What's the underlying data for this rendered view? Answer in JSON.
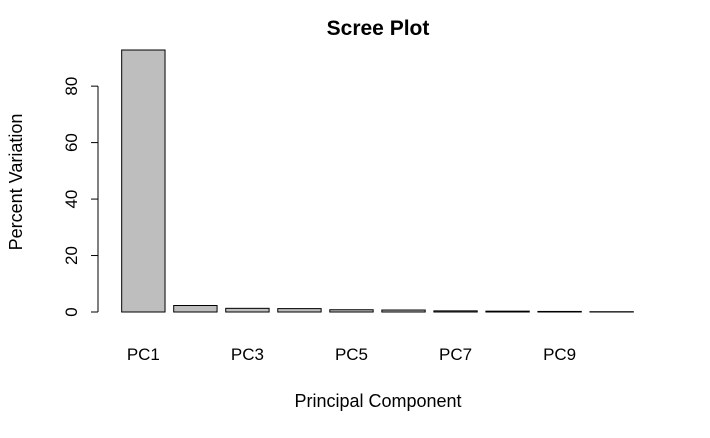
{
  "chart_data": {
    "type": "bar",
    "title": "Scree Plot",
    "xlabel": "Principal Component",
    "ylabel": "Percent Variation",
    "categories": [
      "PC1",
      "PC2",
      "PC3",
      "PC4",
      "PC5",
      "PC6",
      "PC7",
      "PC8",
      "PC9",
      "PC10"
    ],
    "x_tick_labels_shown": [
      "PC1",
      "PC3",
      "PC5",
      "PC7",
      "PC9"
    ],
    "values": [
      92.8,
      2.3,
      1.3,
      1.2,
      0.8,
      0.7,
      0.4,
      0.3,
      0.2,
      0.1
    ],
    "ylim": [
      0,
      92.8
    ],
    "yticks": [
      0,
      20,
      40,
      60,
      80
    ],
    "grid": false,
    "bar_color": "#bebebe",
    "edge_color": "#000000"
  }
}
